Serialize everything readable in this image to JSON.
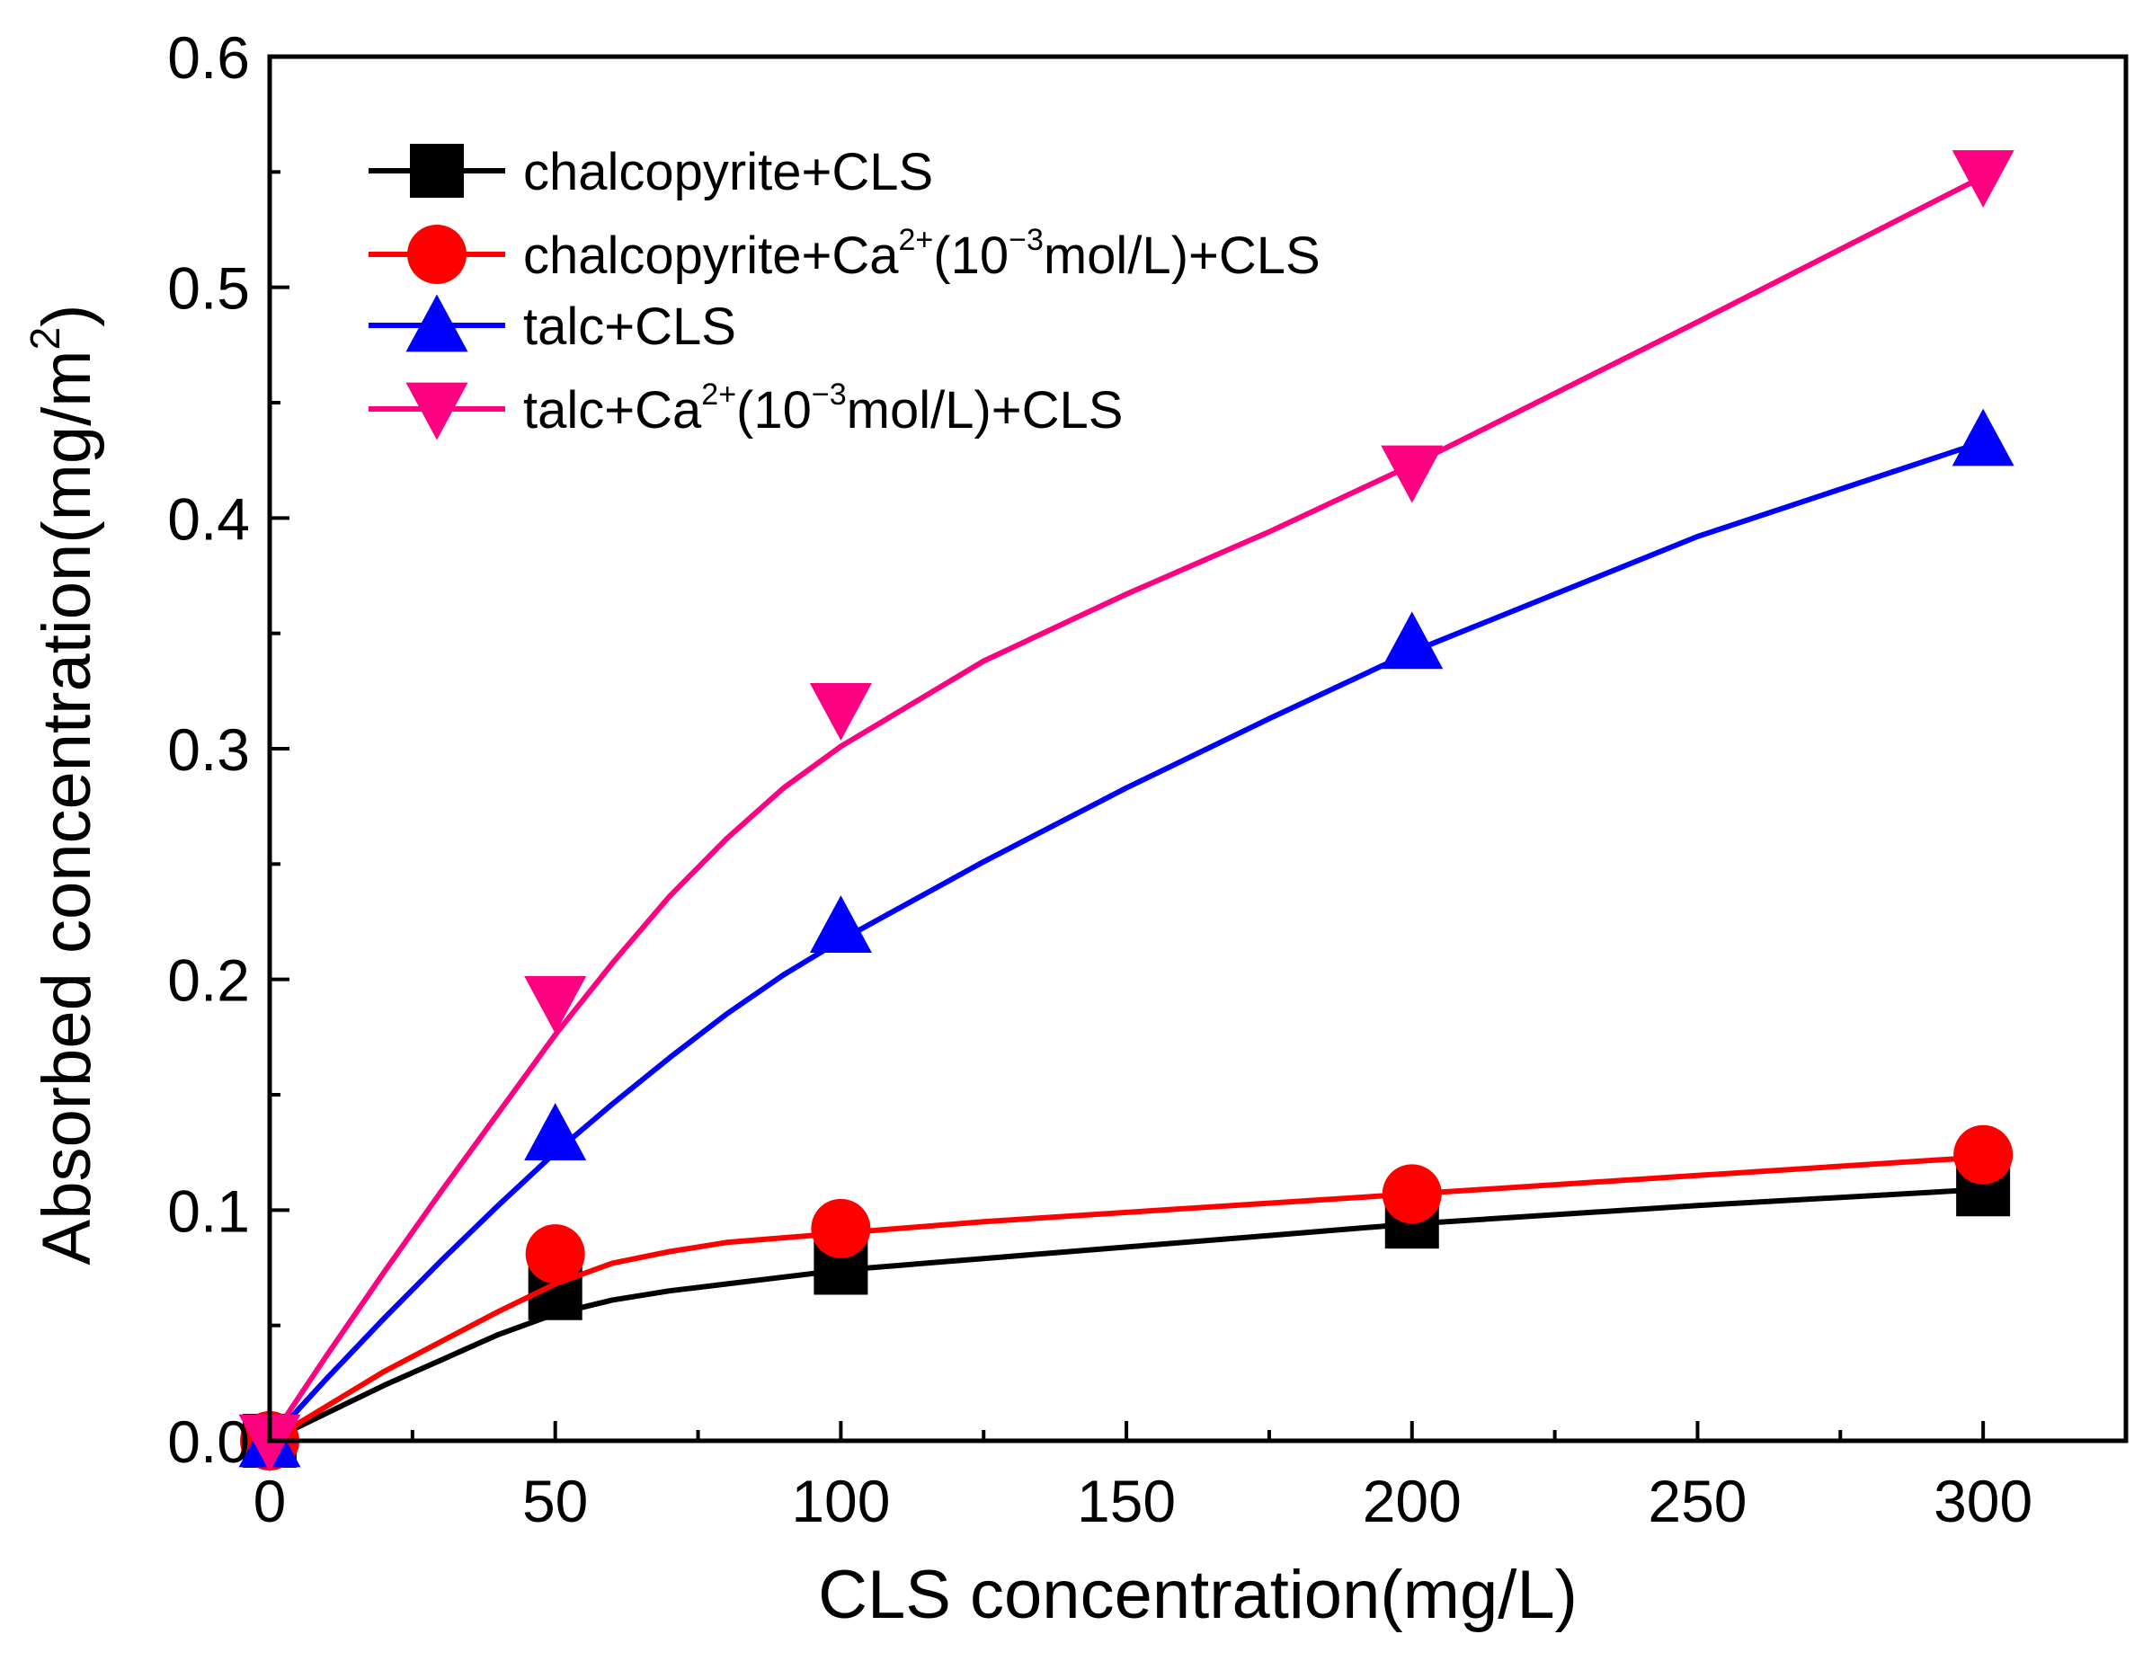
{
  "chart_data": {
    "type": "line",
    "title": "",
    "xlabel": "CLS concentration(mg/L)",
    "ylabel": {
      "prefix": "Absorbed concentration(mg/m",
      "superscript": "2",
      "suffix": ")"
    },
    "xlim": [
      0,
      325
    ],
    "ylim": [
      0,
      0.6
    ],
    "x_ticks": [
      0,
      50,
      100,
      150,
      200,
      250,
      300
    ],
    "y_ticks": [
      0.0,
      0.1,
      0.2,
      0.3,
      0.4,
      0.5,
      0.6
    ],
    "x_tick_labels": [
      "0",
      "50",
      "100",
      "150",
      "200",
      "250",
      "300"
    ],
    "y_tick_labels": [
      "0.0",
      "0.1",
      "0.2",
      "0.3",
      "0.4",
      "0.5",
      "0.6"
    ],
    "legend_position": "top-left",
    "grid": false,
    "series": [
      {
        "name": "chalcopyrite+CLS",
        "legend": [
          {
            "text": "chalcopyrite+CLS"
          }
        ],
        "color": "#000000",
        "marker": "square",
        "x": [
          0,
          50,
          100,
          200,
          300
        ],
        "y": [
          0,
          0.064,
          0.075,
          0.095,
          0.109
        ],
        "fit": [
          [
            0,
            0
          ],
          [
            10,
            0.012
          ],
          [
            20,
            0.024
          ],
          [
            30,
            0.035
          ],
          [
            40,
            0.046
          ],
          [
            50,
            0.055
          ],
          [
            60,
            0.061
          ],
          [
            70,
            0.065
          ],
          [
            80,
            0.068
          ],
          [
            90,
            0.071
          ],
          [
            100,
            0.074
          ],
          [
            125,
            0.079
          ],
          [
            150,
            0.084
          ],
          [
            175,
            0.089
          ],
          [
            200,
            0.094
          ],
          [
            250,
            0.102
          ],
          [
            300,
            0.109
          ]
        ]
      },
      {
        "name": "chalcopyrite+Ca2+(10-3mol/L)+CLS",
        "legend": [
          {
            "text": "chalcopyrite+Ca"
          },
          {
            "text": "2+",
            "sup": true
          },
          {
            "text": "(10"
          },
          {
            "text": "−3",
            "sup": true
          },
          {
            "text": "mol/L)+CLS"
          }
        ],
        "color": "#ff0000",
        "marker": "circle",
        "x": [
          0,
          50,
          100,
          200,
          300
        ],
        "y": [
          0,
          0.081,
          0.092,
          0.107,
          0.124
        ],
        "fit": [
          [
            0,
            0
          ],
          [
            10,
            0.015
          ],
          [
            20,
            0.03
          ],
          [
            30,
            0.043
          ],
          [
            40,
            0.056
          ],
          [
            50,
            0.068
          ],
          [
            60,
            0.077
          ],
          [
            70,
            0.082
          ],
          [
            80,
            0.086
          ],
          [
            90,
            0.088
          ],
          [
            100,
            0.09
          ],
          [
            125,
            0.095
          ],
          [
            150,
            0.099
          ],
          [
            175,
            0.103
          ],
          [
            200,
            0.107
          ],
          [
            250,
            0.115
          ],
          [
            300,
            0.123
          ]
        ]
      },
      {
        "name": "talc+CLS",
        "legend": [
          {
            "text": "talc+CLS"
          }
        ],
        "color": "#0000ff",
        "marker": "triangle-up",
        "x": [
          0,
          50,
          100,
          200,
          300
        ],
        "y": [
          0,
          0.133,
          0.223,
          0.346,
          0.434
        ],
        "fit": [
          [
            0,
            0
          ],
          [
            10,
            0.027
          ],
          [
            20,
            0.053
          ],
          [
            30,
            0.078
          ],
          [
            40,
            0.102
          ],
          [
            50,
            0.125
          ],
          [
            60,
            0.146
          ],
          [
            70,
            0.166
          ],
          [
            80,
            0.185
          ],
          [
            90,
            0.202
          ],
          [
            100,
            0.217
          ],
          [
            125,
            0.251
          ],
          [
            150,
            0.283
          ],
          [
            175,
            0.313
          ],
          [
            200,
            0.342
          ],
          [
            250,
            0.392
          ],
          [
            300,
            0.433
          ]
        ]
      },
      {
        "name": "talc+Ca2+(10-3mol/L)+CLS",
        "legend": [
          {
            "text": "talc+Ca"
          },
          {
            "text": "2+",
            "sup": true
          },
          {
            "text": "(10"
          },
          {
            "text": "−3",
            "sup": true
          },
          {
            "text": "mol/L)+CLS"
          }
        ],
        "color": "#ff0080",
        "marker": "triangle-down",
        "x": [
          0,
          50,
          100,
          200,
          300
        ],
        "y": [
          0,
          0.19,
          0.317,
          0.42,
          0.548
        ],
        "fit": [
          [
            0,
            0
          ],
          [
            10,
            0.037
          ],
          [
            20,
            0.073
          ],
          [
            30,
            0.108
          ],
          [
            40,
            0.142
          ],
          [
            50,
            0.176
          ],
          [
            60,
            0.207
          ],
          [
            70,
            0.236
          ],
          [
            80,
            0.261
          ],
          [
            90,
            0.283
          ],
          [
            100,
            0.301
          ],
          [
            125,
            0.338
          ],
          [
            150,
            0.367
          ],
          [
            175,
            0.394
          ],
          [
            200,
            0.423
          ],
          [
            250,
            0.485
          ],
          [
            300,
            0.548
          ]
        ]
      }
    ]
  }
}
